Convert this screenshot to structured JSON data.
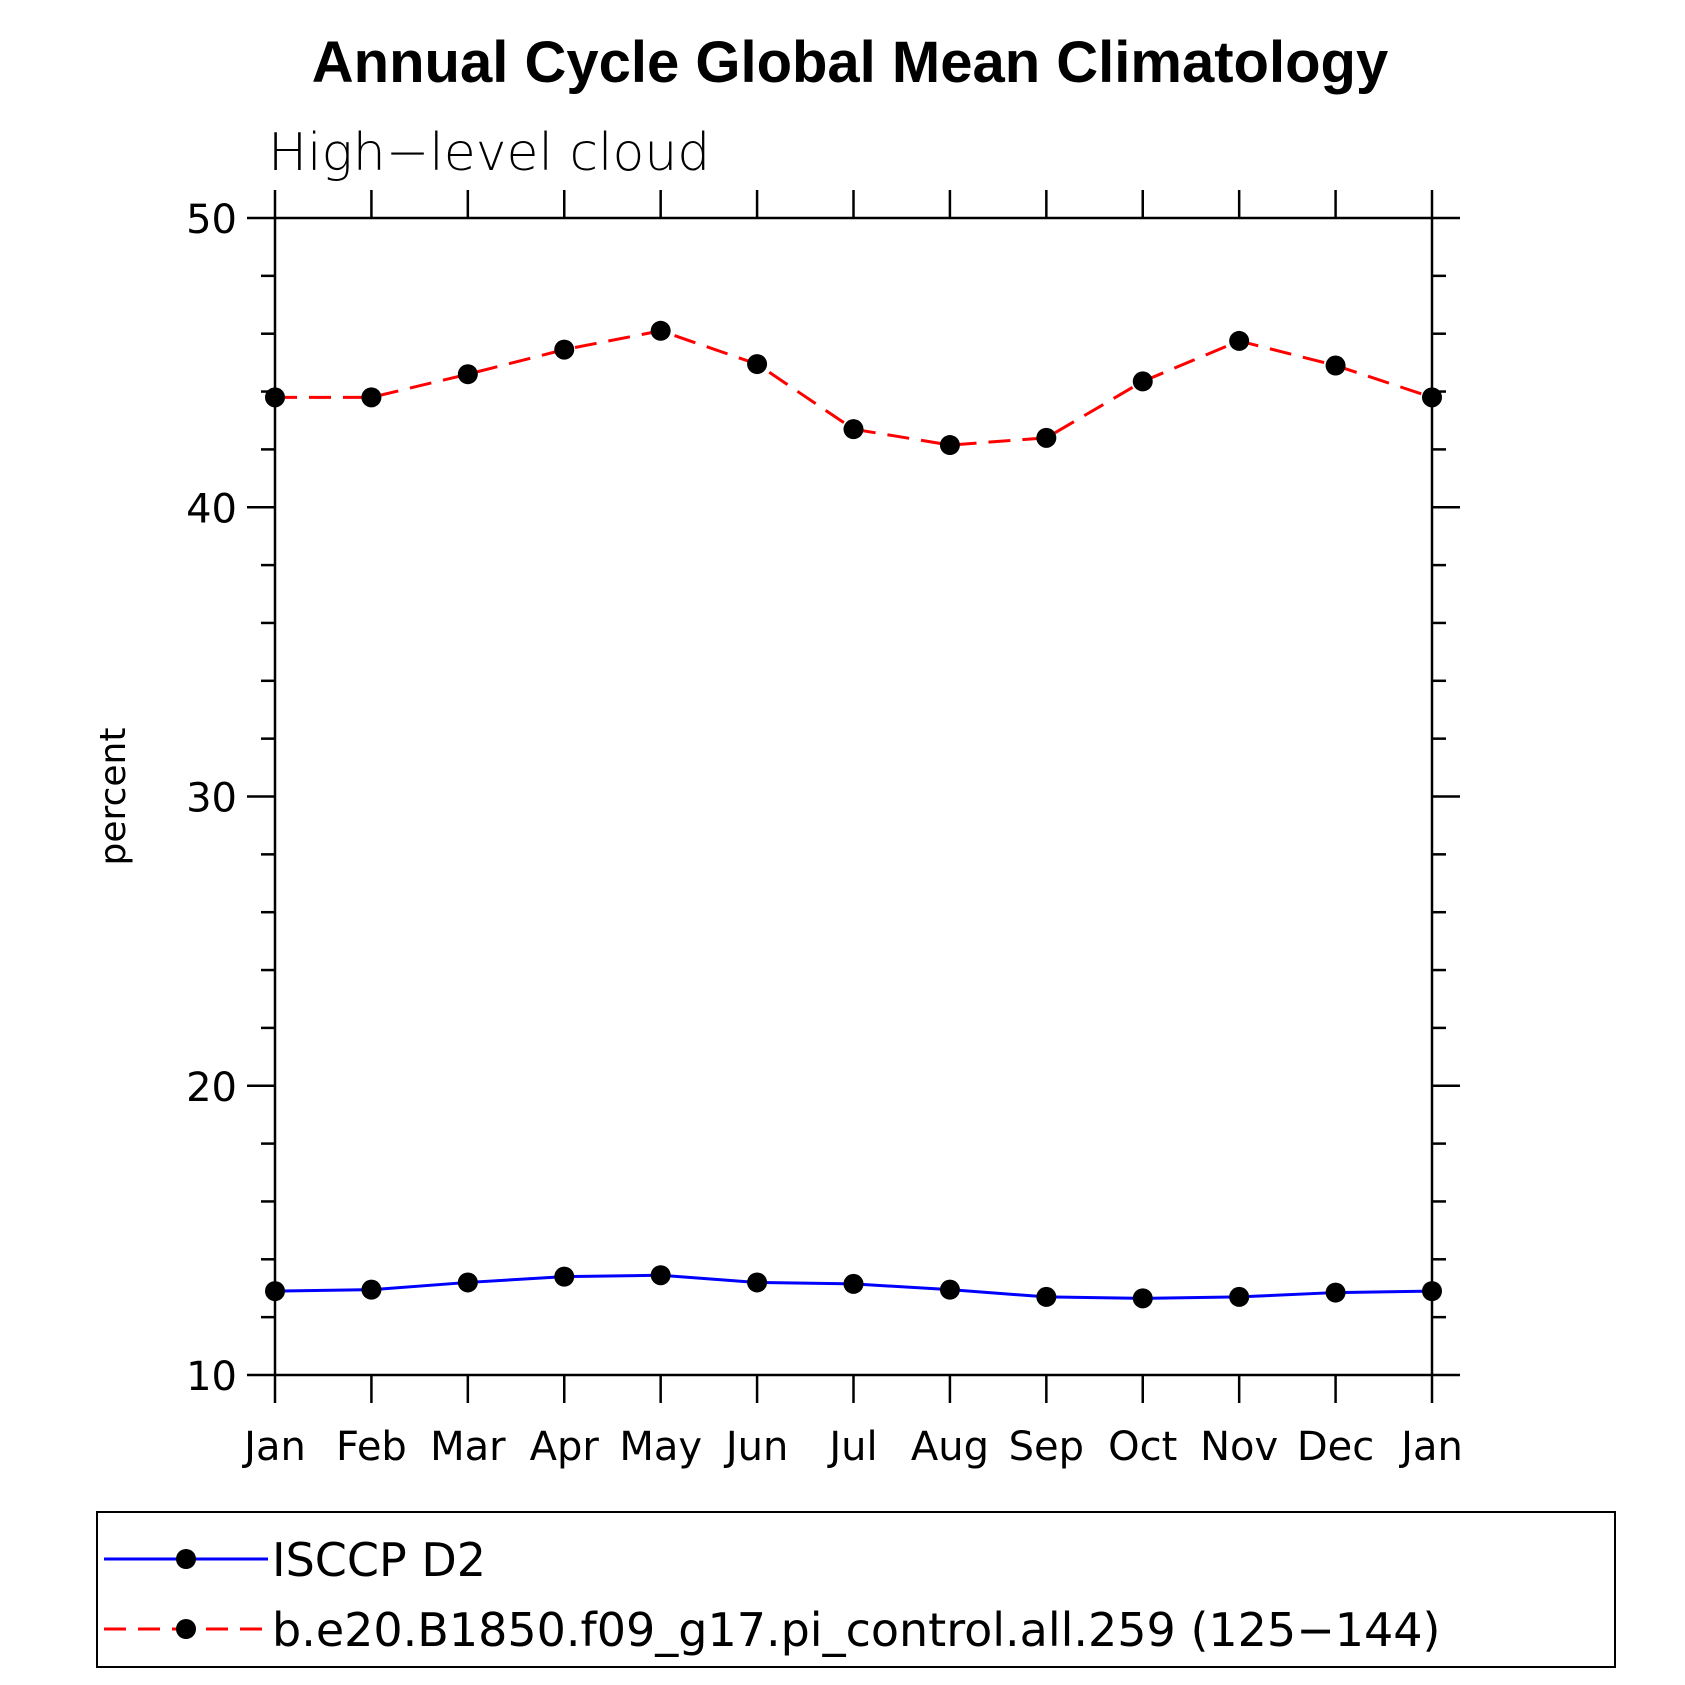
{
  "chart_data": {
    "type": "line",
    "title": "Annual Cycle Global Mean Climatology",
    "subtitle": "High−level cloud",
    "xlabel": "",
    "ylabel": "percent",
    "ylim": [
      10,
      50
    ],
    "yticks": [
      "10",
      "20",
      "30",
      "40",
      "50"
    ],
    "categories": [
      "Jan",
      "Feb",
      "Mar",
      "Apr",
      "May",
      "Jun",
      "Jul",
      "Aug",
      "Sep",
      "Oct",
      "Nov",
      "Dec",
      "Jan"
    ],
    "grid": false,
    "legend_position": "bottom",
    "series": [
      {
        "name": "ISCCP D2",
        "color": "#0000ff",
        "dash": "solid",
        "marker": "filled-circle",
        "values": [
          12.9,
          12.95,
          13.2,
          13.4,
          13.45,
          13.2,
          13.15,
          12.95,
          12.7,
          12.65,
          12.7,
          12.85,
          12.9
        ]
      },
      {
        "name": "b.e20.B1850.f09_g17.pi_control.all.259 (125−144)",
        "color": "#ff0000",
        "dash": "dashed",
        "marker": "filled-circle",
        "values": [
          43.8,
          43.8,
          44.6,
          45.45,
          46.1,
          44.95,
          42.7,
          42.15,
          42.4,
          44.35,
          45.75,
          44.9,
          43.8
        ]
      }
    ]
  }
}
